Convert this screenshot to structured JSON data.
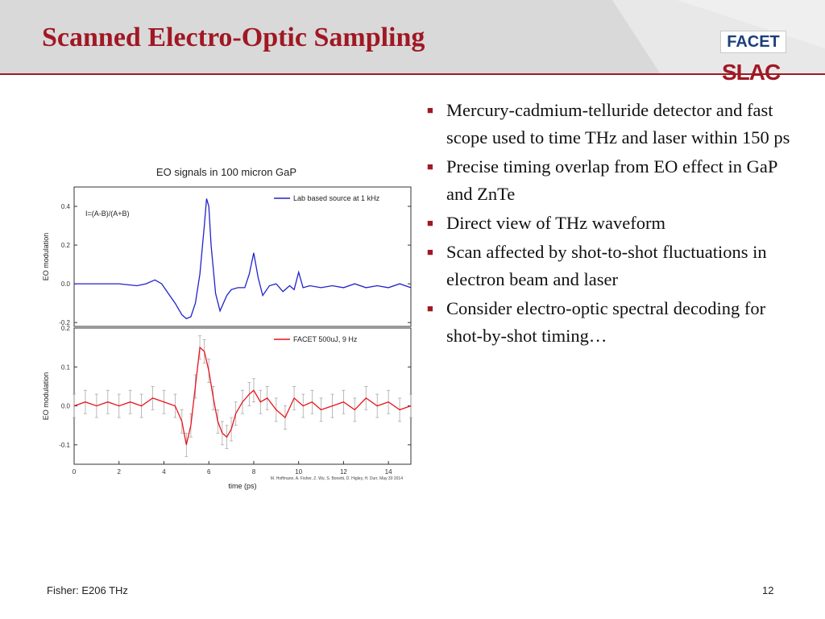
{
  "slide": {
    "title": "Scanned Electro-Optic Sampling",
    "footer_left": "Fisher: E206 THz",
    "page_number": "12"
  },
  "logos": {
    "facet": "FACET",
    "slac": "SLAC"
  },
  "bullets": [
    "Mercury-cadmium-telluride detector and fast scope used to time THz and laser within 150 ps",
    "Precise timing overlap from EO effect in GaP and ZnTe",
    "Direct view of THz waveform",
    "Scan affected by shot-to-shot fluctuations in electron beam and laser",
    "Consider electro-optic spectral decoding for shot-by-shot timing…"
  ],
  "colors": {
    "title": "#a01824",
    "header_bg": "#d9d9d9",
    "blue_series": "#2222cc",
    "red_series": "#e8141c",
    "error_bars": "#aaaaaa"
  },
  "chart_data": [
    {
      "type": "line",
      "title": "EO signals in 100 micron GaP",
      "annotation": "I=(A-B)/(A+B)",
      "ylabel": "EO modulation",
      "xlim": [
        0,
        15
      ],
      "ylim": [
        -0.22,
        0.5
      ],
      "yticks": [
        -0.2,
        0.0,
        0.2,
        0.4
      ],
      "ytick_labels": [
        "-0.2",
        "0.0",
        "0.2",
        "0.4"
      ],
      "legend_position": "top-right",
      "series": [
        {
          "name": "Lab based source at 1 kHz",
          "color": "#2222cc",
          "x": [
            0,
            1.0,
            2.0,
            2.8,
            3.2,
            3.6,
            3.9,
            4.2,
            4.5,
            4.8,
            5.0,
            5.2,
            5.4,
            5.6,
            5.8,
            5.9,
            6.0,
            6.1,
            6.3,
            6.5,
            6.8,
            7.0,
            7.3,
            7.6,
            7.8,
            8.0,
            8.2,
            8.4,
            8.7,
            9.0,
            9.3,
            9.6,
            9.8,
            10.0,
            10.2,
            10.5,
            11.0,
            11.5,
            12.0,
            12.5,
            13.0,
            13.5,
            14.0,
            14.5,
            15.0
          ],
          "y": [
            0,
            0,
            0,
            -0.01,
            0.0,
            0.02,
            0.0,
            -0.05,
            -0.1,
            -0.16,
            -0.18,
            -0.17,
            -0.1,
            0.05,
            0.3,
            0.44,
            0.4,
            0.2,
            -0.05,
            -0.14,
            -0.06,
            -0.03,
            -0.02,
            -0.02,
            0.05,
            0.16,
            0.03,
            -0.06,
            -0.01,
            0.0,
            -0.04,
            -0.01,
            -0.03,
            0.06,
            -0.02,
            -0.01,
            -0.02,
            -0.01,
            -0.02,
            0.0,
            -0.02,
            -0.01,
            -0.02,
            0.0,
            -0.02
          ]
        }
      ]
    },
    {
      "type": "line",
      "ylabel": "EO modulation",
      "xlabel": "time (ps)",
      "credit": "M. Hoffmann, A. Fisher, Z. Wu, S. Bonetti, D. Higley, H. Durr, May 30 2014",
      "xlim": [
        0,
        15
      ],
      "ylim": [
        -0.15,
        0.2
      ],
      "xticks": [
        0,
        2,
        4,
        6,
        8,
        10,
        12,
        14
      ],
      "xtick_labels": [
        "0",
        "2",
        "4",
        "6",
        "8",
        "10",
        "12",
        "14"
      ],
      "yticks": [
        -0.1,
        0.0,
        0.1,
        0.2
      ],
      "ytick_labels": [
        "-0.1",
        "0.0",
        "0.1",
        "0.2"
      ],
      "legend_position": "top-right",
      "error_bar_half_width": 0.03,
      "series": [
        {
          "name": "FACET 500uJ, 9 Hz",
          "color": "#e8141c",
          "x": [
            0,
            0.5,
            1.0,
            1.5,
            2.0,
            2.5,
            3.0,
            3.5,
            4.0,
            4.5,
            4.8,
            5.0,
            5.2,
            5.4,
            5.6,
            5.8,
            6.0,
            6.2,
            6.4,
            6.6,
            6.8,
            7.0,
            7.2,
            7.5,
            7.8,
            8.0,
            8.3,
            8.6,
            9.0,
            9.4,
            9.8,
            10.2,
            10.6,
            11.0,
            11.5,
            12.0,
            12.5,
            13.0,
            13.5,
            14.0,
            14.5,
            15.0
          ],
          "y": [
            0.0,
            0.01,
            0.0,
            0.01,
            0.0,
            0.01,
            0.0,
            0.02,
            0.01,
            0.0,
            -0.04,
            -0.1,
            -0.05,
            0.05,
            0.15,
            0.14,
            0.09,
            0.02,
            -0.04,
            -0.07,
            -0.08,
            -0.06,
            -0.02,
            0.01,
            0.03,
            0.04,
            0.01,
            0.02,
            -0.01,
            -0.03,
            0.02,
            0.0,
            0.01,
            -0.01,
            0.0,
            0.01,
            -0.01,
            0.02,
            0.0,
            0.01,
            -0.01,
            0.0
          ]
        }
      ]
    }
  ]
}
